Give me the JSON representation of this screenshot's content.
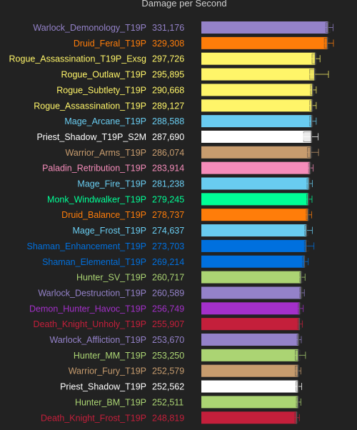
{
  "chart_data": {
    "type": "bar",
    "orientation": "horizontal",
    "title": "Damage per Second",
    "categories": [
      "Warlock_Demonology_T19P",
      "Druid_Feral_T19P",
      "Rogue_Assassination_T19P_Exsg",
      "Rogue_Outlaw_T19P",
      "Rogue_Subtlety_T19P",
      "Rogue_Assassination_T19P",
      "Mage_Arcane_T19P",
      "Priest_Shadow_T19P_S2M",
      "Warrior_Arms_T19P",
      "Paladin_Retribution_T19P",
      "Mage_Fire_T19P",
      "Monk_Windwalker_T19P",
      "Druid_Balance_T19P",
      "Mage_Frost_T19P",
      "Shaman_Enhancement_T19P",
      "Shaman_Elemental_T19P",
      "Hunter_SV_T19P",
      "Warlock_Destruction_T19P",
      "Demon_Hunter_Havoc_T19P",
      "Death_Knight_Unholy_T19P",
      "Warlock_Affliction_T19P",
      "Hunter_MM_T19P",
      "Warrior_Fury_T19P",
      "Priest_Shadow_T19P",
      "Hunter_BM_T19P",
      "Death_Knight_Frost_T19P"
    ],
    "values": [
      331176,
      329308,
      297726,
      295895,
      290668,
      289127,
      288588,
      287690,
      286074,
      283914,
      281238,
      279245,
      278737,
      274637,
      273703,
      269214,
      260717,
      260589,
      256749,
      255907,
      253670,
      253250,
      252579,
      252562,
      252511,
      248819
    ],
    "value_labels": [
      "331,176",
      "329,308",
      "297,726",
      "295,895",
      "290,668",
      "289,127",
      "288,588",
      "287,690",
      "286,074",
      "283,914",
      "281,238",
      "279,245",
      "278,737",
      "274,637",
      "273,703",
      "269,214",
      "260,717",
      "260,589",
      "256,749",
      "255,907",
      "253,670",
      "253,250",
      "252,579",
      "252,562",
      "252,511",
      "248,819"
    ],
    "box": [
      [
        325000,
        337000
      ],
      [
        321000,
        334000
      ],
      [
        289000,
        301000
      ],
      [
        283000,
        300000
      ],
      [
        285000,
        295000
      ],
      [
        283000,
        294000
      ],
      [
        283000,
        292000
      ],
      [
        267000,
        289000
      ],
      [
        277000,
        289000
      ],
      [
        280000,
        288000
      ],
      [
        276000,
        285000
      ],
      [
        275000,
        283000
      ],
      [
        274000,
        283000
      ],
      [
        270000,
        279000
      ],
      [
        269000,
        281000
      ],
      [
        264000,
        273000
      ],
      [
        257000,
        265000
      ],
      [
        257000,
        264000
      ],
      [
        253000,
        261000
      ],
      [
        252000,
        260000
      ],
      [
        250000,
        256000
      ],
      [
        245000,
        258000
      ],
      [
        245000,
        256000
      ],
      [
        247000,
        256000
      ],
      [
        248000,
        256000
      ],
      [
        244000,
        252000
      ]
    ],
    "whisker": [
      [
        319000,
        344000
      ],
      [
        315000,
        345000
      ],
      [
        286000,
        310000
      ],
      [
        276000,
        332000
      ],
      [
        281000,
        300000
      ],
      [
        280000,
        300000
      ],
      [
        281000,
        300000
      ],
      [
        267000,
        305000
      ],
      [
        272000,
        306000
      ],
      [
        278000,
        292000
      ],
      [
        273000,
        290000
      ],
      [
        271000,
        289000
      ],
      [
        270000,
        288000
      ],
      [
        265000,
        290000
      ],
      [
        266000,
        294000
      ],
      [
        260000,
        279000
      ],
      [
        254000,
        271000
      ],
      [
        254000,
        269000
      ],
      [
        250000,
        266000
      ],
      [
        249000,
        264000
      ],
      [
        247000,
        261000
      ],
      [
        240000,
        272000
      ],
      [
        242000,
        260000
      ],
      [
        244000,
        262000
      ],
      [
        245000,
        260000
      ],
      [
        240000,
        256000
      ]
    ],
    "colors": [
      "#9482c9",
      "#ff7d0a",
      "#fff569",
      "#fff569",
      "#fff569",
      "#fff569",
      "#69ccf0",
      "#ffffff",
      "#c79c6e",
      "#f58cba",
      "#69ccf0",
      "#00ff96",
      "#ff7d0a",
      "#69ccf0",
      "#0070de",
      "#0070de",
      "#abd473",
      "#9482c9",
      "#a330c9",
      "#c41f3b",
      "#9482c9",
      "#abd473",
      "#c79c6e",
      "#ffffff",
      "#abd473",
      "#c41f3b"
    ],
    "xlim": [
      0,
      345000
    ]
  }
}
